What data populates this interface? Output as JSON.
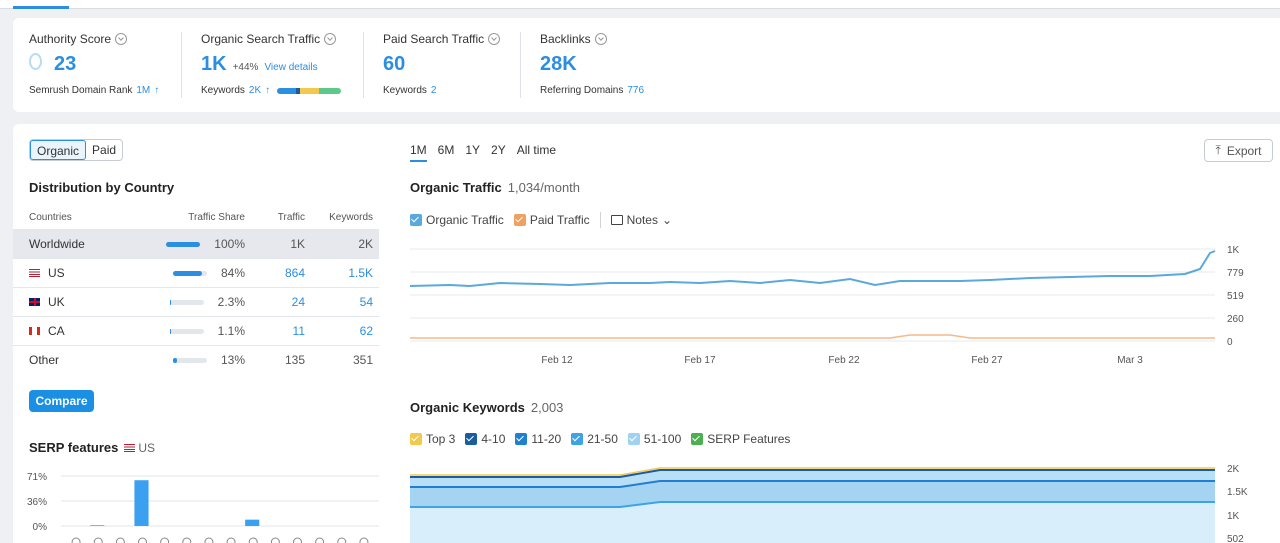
{
  "metrics": {
    "authority": {
      "label": "Authority Score",
      "value": "23",
      "sub_label": "Semrush Domain Rank",
      "sub_value": "1M"
    },
    "organic": {
      "label": "Organic Search Traffic",
      "value": "1K",
      "delta": "+44%",
      "link": "View details",
      "sub_label": "Keywords",
      "sub_value": "2K"
    },
    "paid": {
      "label": "Paid Search Traffic",
      "value": "60",
      "sub_label": "Keywords",
      "sub_value": "2"
    },
    "backlinks": {
      "label": "Backlinks",
      "value": "28K",
      "sub_label": "Referring Domains",
      "sub_value": "776"
    }
  },
  "toggle": {
    "organic": "Organic",
    "paid": "Paid"
  },
  "distribution": {
    "title": "Distribution by Country",
    "headers": [
      "Countries",
      "Traffic Share",
      "Traffic",
      "Keywords"
    ],
    "rows": [
      {
        "country": "Worldwide",
        "share": "100%",
        "share_val": 1.0,
        "traffic": "1K",
        "keywords": "2K"
      },
      {
        "country": "US",
        "share": "84%",
        "share_val": 0.84,
        "traffic": "864",
        "keywords": "1.5K"
      },
      {
        "country": "UK",
        "share": "2.3%",
        "share_val": 0.023,
        "traffic": "24",
        "keywords": "54"
      },
      {
        "country": "CA",
        "share": "1.1%",
        "share_val": 0.011,
        "traffic": "11",
        "keywords": "62"
      },
      {
        "country": "Other",
        "share": "13%",
        "share_val": 0.13,
        "traffic": "135",
        "keywords": "351"
      }
    ]
  },
  "compare_label": "Compare",
  "serp": {
    "title": "SERP features",
    "country": "US",
    "y_ticks": [
      "71%",
      "36%",
      "0%"
    ],
    "values": [
      0,
      1,
      0,
      65,
      0,
      0,
      0,
      0,
      9,
      0,
      0,
      0,
      0,
      0
    ]
  },
  "periods": [
    "1M",
    "6M",
    "1Y",
    "2Y",
    "All time"
  ],
  "export_label": "Export",
  "traffic_chart": {
    "title": "Organic Traffic",
    "subtitle": "1,034/month",
    "legend": {
      "organic": "Organic Traffic",
      "paid": "Paid Traffic",
      "notes": "Notes"
    },
    "colors": {
      "organic": "#5aa9dc",
      "paid": "#f5b98a"
    },
    "y_ticks": [
      "1K",
      "779",
      "519",
      "260",
      "0"
    ],
    "x_ticks": [
      "Feb 12",
      "Feb 17",
      "Feb 22",
      "Feb 27",
      "Mar 3"
    ]
  },
  "keywords_chart": {
    "title": "Organic Keywords",
    "subtitle": "2,003",
    "legend": [
      "Top 3",
      "4-10",
      "11-20",
      "21-50",
      "51-100",
      "SERP Features"
    ],
    "legend_colors": [
      "#f2c94c",
      "#1a5c9e",
      "#1f7fd1",
      "#3ea2e5",
      "#9fd2f2",
      "#4caf50"
    ],
    "y_ticks": [
      "2K",
      "1.5K",
      "1K",
      "502"
    ]
  }
}
